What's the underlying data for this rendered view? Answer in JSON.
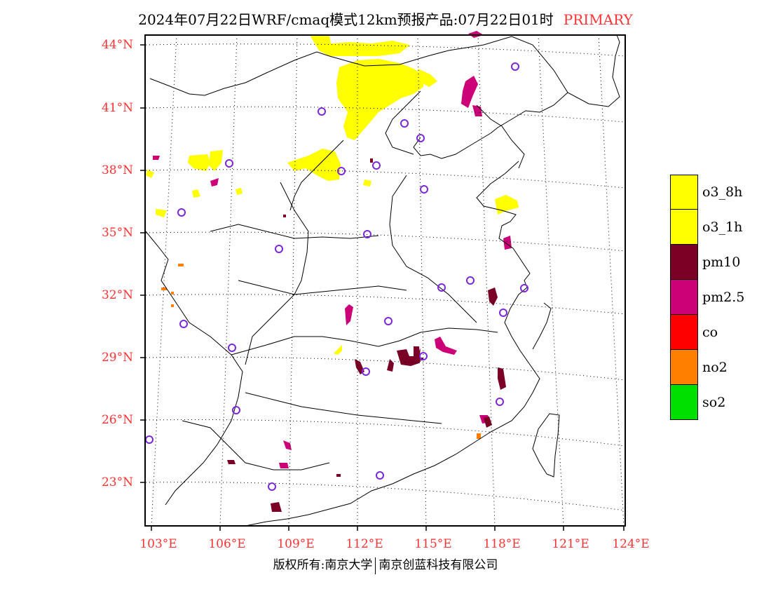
{
  "header": {
    "title": "2024年07月22日WRF/cmaq模式12km预报产品:07月22日01时",
    "tag": "PRIMARY"
  },
  "map": {
    "lat_labels": [
      "44°N",
      "41°N",
      "38°N",
      "35°N",
      "32°N",
      "29°N",
      "26°N",
      "23°N"
    ],
    "lon_labels": [
      "103°E",
      "106°E",
      "109°E",
      "112°E",
      "115°E",
      "118°E",
      "121°E",
      "124°E"
    ]
  },
  "legend": [
    {
      "label": "o3_8h",
      "color": "#ffff00"
    },
    {
      "label": "o3_1h",
      "color": "#ffff00"
    },
    {
      "label": "pm10",
      "color": "#7a0026"
    },
    {
      "label": "pm2.5",
      "color": "#cc0077"
    },
    {
      "label": "co",
      "color": "#ff0000"
    },
    {
      "label": "no2",
      "color": "#ff8000"
    },
    {
      "label": "so2",
      "color": "#00e000"
    }
  ],
  "footer": {
    "left": "版权所有:南京大学",
    "right": "南京创蓝科技有限公司"
  }
}
